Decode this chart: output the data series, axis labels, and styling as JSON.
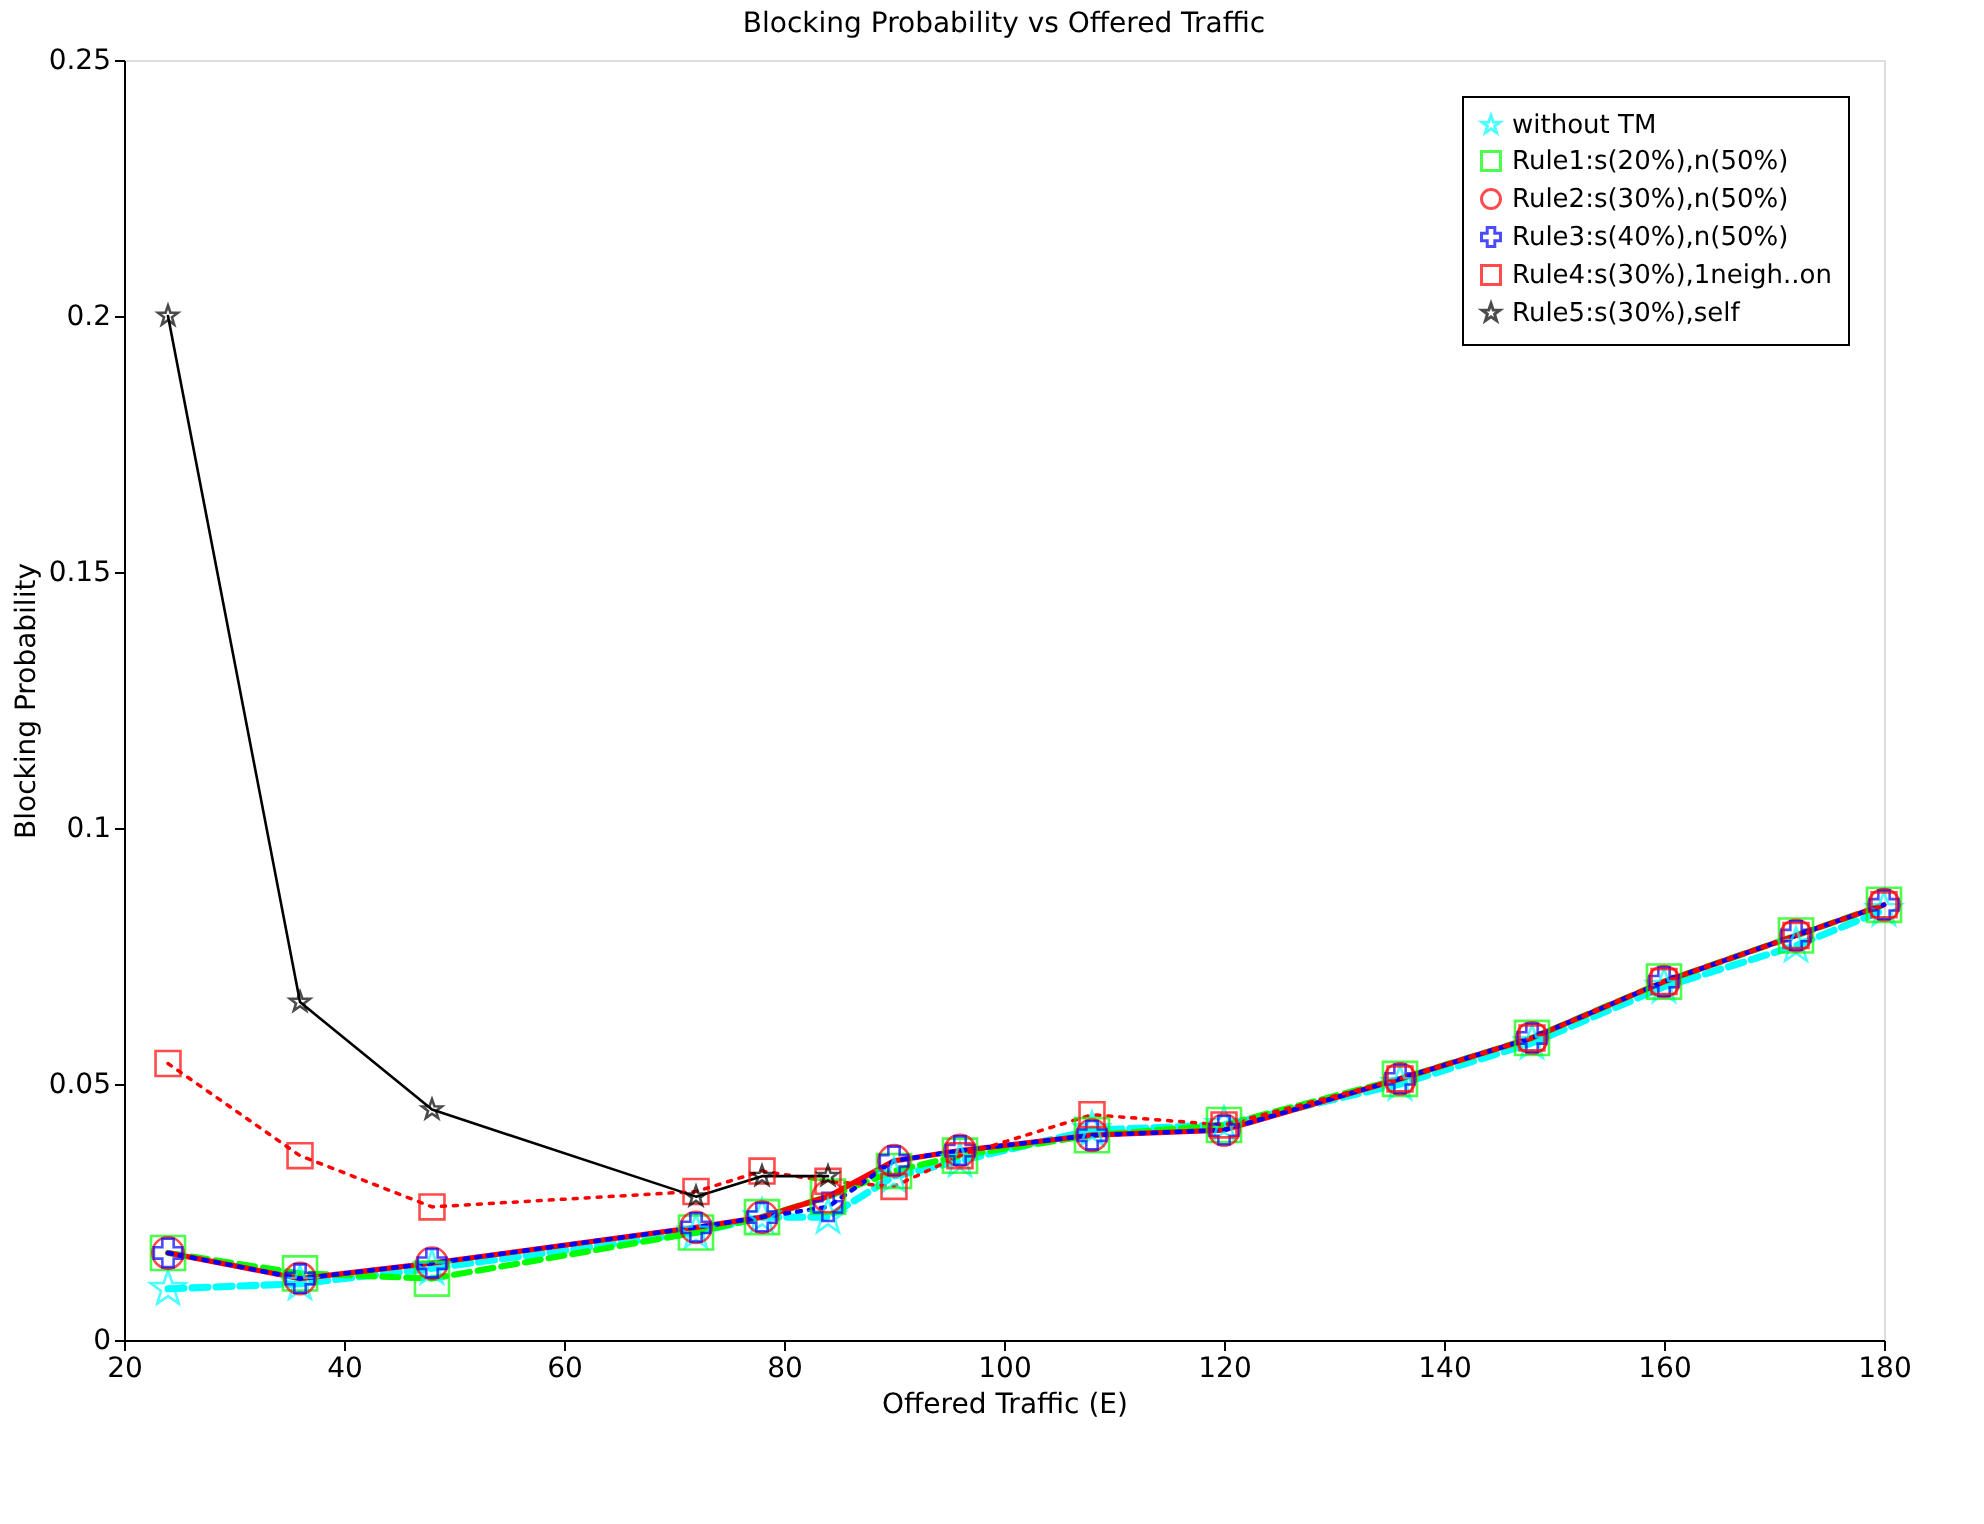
{
  "chart_data": {
    "type": "line",
    "title": "Blocking Probability vs Offered Traffic",
    "xlabel": "Offered Traffic (E)",
    "ylabel": "Blocking Probability",
    "x": [
      24,
      36,
      48,
      72,
      78,
      84,
      90,
      96,
      108,
      120,
      136,
      148,
      160,
      172,
      180
    ],
    "xlim": [
      20,
      180
    ],
    "xticks": [
      20,
      40,
      60,
      80,
      100,
      120,
      140,
      160,
      180
    ],
    "ylim": [
      0,
      0.25
    ],
    "yticks": [
      0,
      0.05,
      0.1,
      0.15,
      0.2,
      0.25
    ],
    "grid": false,
    "legend": "top right",
    "series": [
      {
        "name": "without TM",
        "color": "#00ffff",
        "marker": "star",
        "line_style": "dashed",
        "values": [
          0.01,
          0.011,
          0.014,
          0.021,
          0.024,
          0.024,
          0.032,
          0.035,
          0.041,
          0.042,
          0.05,
          0.058,
          0.069,
          0.077,
          0.084
        ]
      },
      {
        "name": "Rule1:s(20%),n(50%)",
        "color": "#00ff00",
        "marker": "square",
        "line_style": "dashed",
        "values": [
          0.017,
          0.013,
          0.012,
          0.021,
          0.024,
          0.028,
          0.033,
          0.036,
          0.04,
          0.042,
          0.051,
          0.059,
          0.07,
          0.079,
          0.085
        ]
      },
      {
        "name": "Rule2:s(30%),n(50%)",
        "color": "#ff0000",
        "marker": "circle",
        "line_style": "solid",
        "values": [
          0.017,
          0.012,
          0.015,
          0.022,
          0.024,
          0.028,
          0.035,
          0.037,
          0.04,
          0.041,
          0.051,
          0.059,
          0.07,
          0.079,
          0.085
        ]
      },
      {
        "name": "Rule3:s(40%),n(50%)",
        "color": "#0000ff",
        "marker": "cross",
        "line_style": "dotted",
        "values": [
          0.017,
          0.012,
          0.015,
          0.022,
          0.024,
          0.026,
          0.035,
          0.037,
          0.04,
          0.041,
          0.051,
          0.059,
          0.07,
          0.079,
          0.085
        ]
      },
      {
        "name": "Rule4:s(30%),1neigh..on",
        "color": "#ff0000",
        "marker": "square",
        "line_style": "dotted",
        "values": [
          0.054,
          0.036,
          0.026,
          0.029,
          0.033,
          0.031,
          0.03,
          0.036,
          0.044,
          0.042,
          0.051,
          0.059,
          0.07,
          0.079,
          0.085
        ]
      },
      {
        "name": "Rule5:s(30%),self",
        "color": "#000000",
        "marker": "star",
        "line_style": "solid",
        "x": [
          24,
          36,
          48,
          72,
          78,
          84
        ],
        "values": [
          0.2,
          0.066,
          0.045,
          0.028,
          0.032,
          0.032
        ]
      }
    ]
  }
}
